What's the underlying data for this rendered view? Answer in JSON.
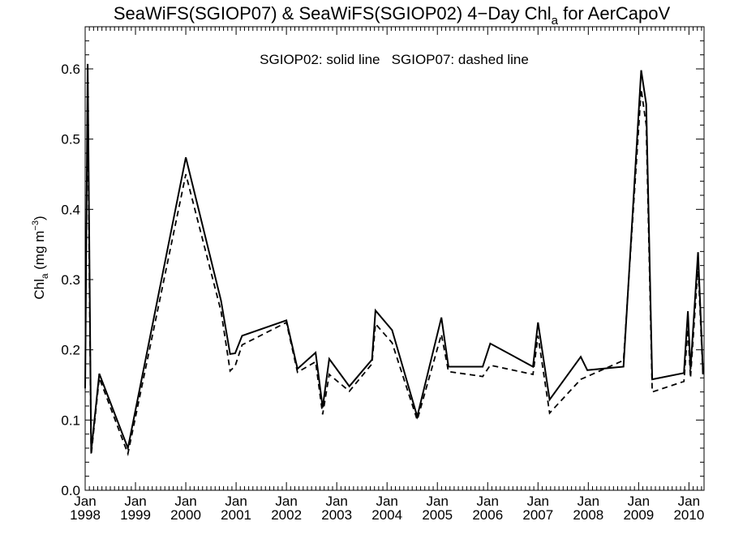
{
  "chart_data": {
    "type": "line",
    "title": {
      "prefix": "SeaWiFS(SGIOP07) & SeaWiFS(SGIOP02) 4−Day Chl",
      "subscript": "a",
      "suffix": " for AerCapoV"
    },
    "annotation": "SGIOP02: solid line   SGIOP07: dashed line",
    "ylabel": {
      "prefix": "Chl",
      "subscript": "a",
      "middle": " (mg m",
      "superscript": "−3",
      "suffix": ")"
    },
    "xlabel": "",
    "xlim": [
      1998.0,
      2010.3
    ],
    "ylim": [
      0,
      0.66
    ],
    "x_ticks": [
      {
        "value": 1998,
        "month": "Jan",
        "year": "1998"
      },
      {
        "value": 1999,
        "month": "Jan",
        "year": "1999"
      },
      {
        "value": 2000,
        "month": "Jan",
        "year": "2000"
      },
      {
        "value": 2001,
        "month": "Jan",
        "year": "2001"
      },
      {
        "value": 2002,
        "month": "Jan",
        "year": "2002"
      },
      {
        "value": 2003,
        "month": "Jan",
        "year": "2003"
      },
      {
        "value": 2004,
        "month": "Jan",
        "year": "2004"
      },
      {
        "value": 2005,
        "month": "Jan",
        "year": "2005"
      },
      {
        "value": 2006,
        "month": "Jan",
        "year": "2006"
      },
      {
        "value": 2007,
        "month": "Jan",
        "year": "2007"
      },
      {
        "value": 2008,
        "month": "Jan",
        "year": "2008"
      },
      {
        "value": 2009,
        "month": "Jan",
        "year": "2009"
      },
      {
        "value": 2010,
        "month": "Jan",
        "year": "2010"
      }
    ],
    "y_ticks": [
      {
        "value": 0.0,
        "label": "0.0"
      },
      {
        "value": 0.1,
        "label": "0.1"
      },
      {
        "value": 0.2,
        "label": "0.2"
      },
      {
        "value": 0.3,
        "label": "0.3"
      },
      {
        "value": 0.4,
        "label": "0.4"
      },
      {
        "value": 0.5,
        "label": "0.5"
      },
      {
        "value": 0.6,
        "label": "0.6"
      }
    ],
    "series": [
      {
        "name": "SGIOP02",
        "style": "solid",
        "color": "#000000",
        "points": [
          [
            1998.0,
            0.145
          ],
          [
            1998.05,
            0.607
          ],
          [
            1998.12,
            0.055
          ],
          [
            1998.28,
            0.166
          ],
          [
            1998.85,
            0.06
          ],
          [
            2000.0,
            0.474
          ],
          [
            2000.7,
            0.27
          ],
          [
            2000.88,
            0.194
          ],
          [
            2000.98,
            0.195
          ],
          [
            2001.12,
            0.22
          ],
          [
            2002.0,
            0.242
          ],
          [
            2002.22,
            0.173
          ],
          [
            2002.58,
            0.196
          ],
          [
            2002.72,
            0.118
          ],
          [
            2002.85,
            0.187
          ],
          [
            2003.25,
            0.148
          ],
          [
            2003.7,
            0.186
          ],
          [
            2003.77,
            0.256
          ],
          [
            2004.1,
            0.228
          ],
          [
            2004.6,
            0.105
          ],
          [
            2005.08,
            0.246
          ],
          [
            2005.22,
            0.176
          ],
          [
            2005.9,
            0.176
          ],
          [
            2006.05,
            0.209
          ],
          [
            2006.9,
            0.176
          ],
          [
            2007.0,
            0.239
          ],
          [
            2007.23,
            0.129
          ],
          [
            2007.85,
            0.19
          ],
          [
            2007.98,
            0.171
          ],
          [
            2008.7,
            0.176
          ],
          [
            2009.05,
            0.598
          ],
          [
            2009.15,
            0.55
          ],
          [
            2009.27,
            0.158
          ],
          [
            2009.9,
            0.167
          ],
          [
            2009.98,
            0.255
          ],
          [
            2010.03,
            0.172
          ],
          [
            2010.18,
            0.339
          ],
          [
            2010.28,
            0.165
          ]
        ]
      },
      {
        "name": "SGIOP07",
        "style": "dashed",
        "color": "#000000",
        "points": [
          [
            1998.05,
            0.545
          ],
          [
            1998.12,
            0.05
          ],
          [
            1998.28,
            0.16
          ],
          [
            1998.85,
            0.052
          ],
          [
            2000.0,
            0.45
          ],
          [
            2000.7,
            0.255
          ],
          [
            2000.88,
            0.17
          ],
          [
            2000.98,
            0.177
          ],
          [
            2001.12,
            0.207
          ],
          [
            2002.0,
            0.239
          ],
          [
            2002.22,
            0.168
          ],
          [
            2002.58,
            0.183
          ],
          [
            2002.72,
            0.108
          ],
          [
            2002.85,
            0.165
          ],
          [
            2003.25,
            0.141
          ],
          [
            2003.7,
            0.18
          ],
          [
            2003.77,
            0.237
          ],
          [
            2004.1,
            0.21
          ],
          [
            2004.6,
            0.1
          ],
          [
            2005.08,
            0.222
          ],
          [
            2005.22,
            0.169
          ],
          [
            2005.9,
            0.162
          ],
          [
            2006.05,
            0.178
          ],
          [
            2006.9,
            0.165
          ],
          [
            2007.0,
            0.22
          ],
          [
            2007.23,
            0.11
          ],
          [
            2007.85,
            0.158
          ],
          [
            2008.7,
            0.185
          ],
          [
            2009.05,
            0.571
          ],
          [
            2009.15,
            0.52
          ],
          [
            2009.27,
            0.14
          ],
          [
            2009.9,
            0.155
          ],
          [
            2009.98,
            0.23
          ],
          [
            2010.03,
            0.16
          ],
          [
            2010.18,
            0.32
          ],
          [
            2010.28,
            0.16
          ]
        ]
      }
    ]
  }
}
